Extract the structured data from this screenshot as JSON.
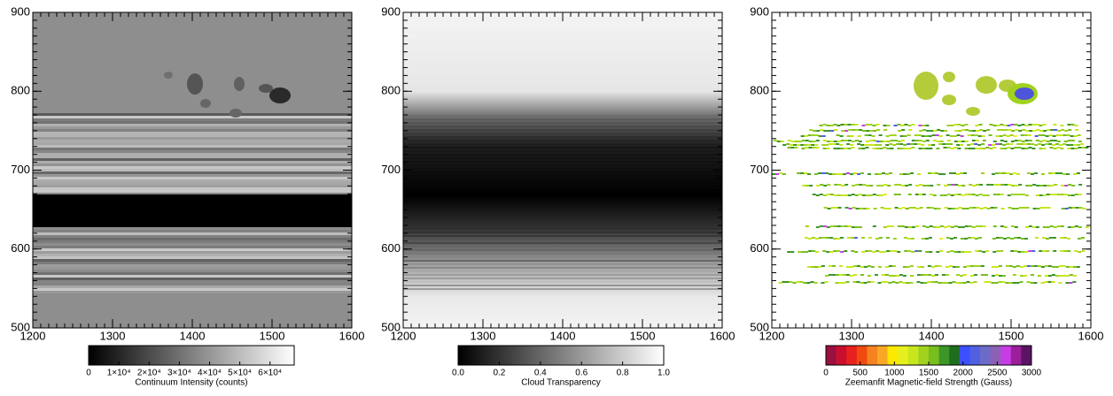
{
  "chart_data": [
    {
      "type": "image",
      "xlim": [
        1200,
        1600
      ],
      "ylim": [
        500,
        900
      ],
      "xticks": [
        1200,
        1300,
        1400,
        1500,
        1600
      ],
      "yticks": [
        500,
        600,
        700,
        800,
        900
      ],
      "colorbar": {
        "label": "Continuum Intensity (counts)",
        "lim": [
          0,
          68000
        ],
        "ticks": [
          0,
          {
            "value": 10000,
            "label": "1×10⁴"
          },
          {
            "value": 20000,
            "label": "2×10⁴"
          },
          {
            "value": 30000,
            "label": "3×10⁴"
          },
          {
            "value": 40000,
            "label": "4×10⁴"
          },
          {
            "value": 50000,
            "label": "5×10⁴"
          },
          {
            "value": 60000,
            "label": "6×10⁴"
          }
        ],
        "colormap": [
          "#000000",
          "#ffffff"
        ]
      }
    },
    {
      "type": "image",
      "xlim": [
        1200,
        1600
      ],
      "ylim": [
        500,
        900
      ],
      "xticks": [
        1200,
        1300,
        1400,
        1500,
        1600
      ],
      "yticks": [
        500,
        600,
        700,
        800,
        900
      ],
      "colorbar": {
        "label": "Cloud Transparency",
        "lim": [
          0,
          1
        ],
        "ticks": [
          {
            "value": 0,
            "label": "0.0"
          },
          0.2,
          0.4,
          0.6,
          0.8,
          {
            "value": 1,
            "label": "1.0"
          }
        ],
        "colormap": [
          "#000000",
          "#ffffff"
        ]
      }
    },
    {
      "type": "image",
      "xlim": [
        1200,
        1600
      ],
      "ylim": [
        500,
        900
      ],
      "xticks": [
        1200,
        1300,
        1400,
        1500,
        1600
      ],
      "yticks": [
        500,
        600,
        700,
        800,
        900
      ],
      "colorbar": {
        "label": "Zeemanfit Magnetic-field Strength (Gauss)",
        "lim": [
          0,
          3000
        ],
        "ticks": [
          0,
          500,
          1000,
          1500,
          2000,
          2500,
          3000
        ],
        "colormap": [
          "#9a1040",
          "#c8102e",
          "#e8201e",
          "#f04a10",
          "#f5821f",
          "#f9a825",
          "#ffe800",
          "#e6f01e",
          "#c8e61e",
          "#a0d21e",
          "#78be1e",
          "#3c9628",
          "#1e6e1e",
          "#3c50ff",
          "#5060e0",
          "#6c6cc8",
          "#8c60b4",
          "#c83ce6",
          "#9b1e9b",
          "#5a1464"
        ]
      }
    }
  ]
}
